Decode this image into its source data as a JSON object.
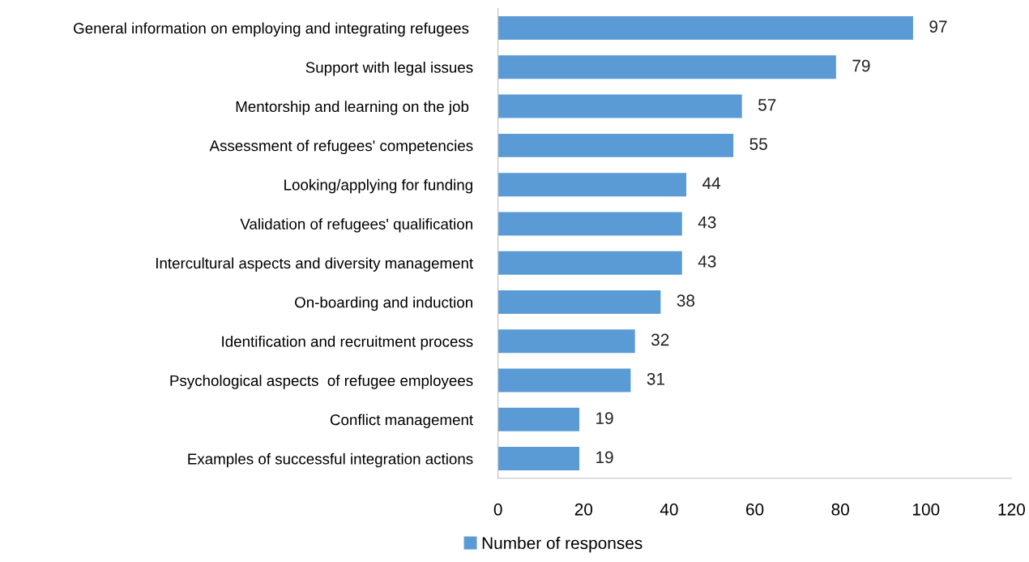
{
  "chart_data": {
    "type": "bar",
    "orientation": "horizontal",
    "categories": [
      "General information on employing and integrating refugees ",
      "Support with legal issues",
      "Mentorship and learning on the job ",
      "Assessment of refugees' competencies",
      "Looking/applying for funding",
      "Validation of refugees' qualification",
      "Intercultural aspects and diversity management",
      "On-boarding and induction",
      "Identification and recruitment process",
      "Psychological aspects  of refugee employees",
      "Conflict management",
      "Examples of successful integration actions"
    ],
    "series": [
      {
        "name": "Number of responses",
        "color": "#5b9bd5",
        "values": [
          97,
          79,
          57,
          55,
          44,
          43,
          43,
          38,
          32,
          31,
          19,
          19
        ]
      }
    ],
    "xlim": [
      0,
      120
    ],
    "xticks": [
      0,
      20,
      40,
      60,
      80,
      100,
      120
    ],
    "data_labels": true,
    "grid": false,
    "legend": "bottom"
  }
}
